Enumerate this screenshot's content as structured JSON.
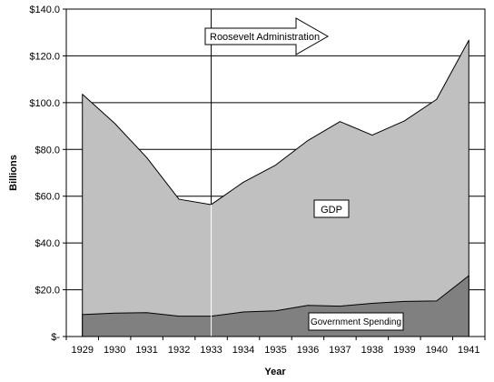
{
  "chart_data": {
    "type": "area",
    "x": [
      "1929",
      "1930",
      "1931",
      "1932",
      "1933",
      "1934",
      "1935",
      "1936",
      "1937",
      "1938",
      "1939",
      "1940",
      "1941"
    ],
    "series": [
      {
        "name": "GDP",
        "values": [
          103.6,
          91.2,
          76.5,
          58.7,
          56.4,
          66.0,
          73.3,
          83.8,
          91.9,
          86.1,
          92.2,
          101.4,
          126.7
        ],
        "color": "#c0c0c0"
      },
      {
        "name": "Government Spending",
        "values": [
          9.4,
          10.0,
          10.2,
          8.7,
          8.7,
          10.5,
          11.0,
          13.3,
          13.0,
          14.2,
          15.0,
          15.2,
          26.0
        ],
        "color": "#808080"
      }
    ],
    "title": "",
    "xlabel": "Year",
    "ylabel": "Billions",
    "ylim": [
      0,
      140
    ],
    "yticks": [
      0,
      20,
      40,
      60,
      80,
      100,
      120,
      140
    ],
    "ytick_labels": [
      "$-",
      "$20.0",
      "$40.0",
      "$60.0",
      "$80.0",
      "$100.0",
      "$120.0",
      "$140.0"
    ],
    "grid": "horizontal",
    "annotations": {
      "administration": "Roosevelt Administration",
      "administration_start_x": "1933",
      "gdp_label": "GDP",
      "spending_label": "Government Spending"
    }
  }
}
